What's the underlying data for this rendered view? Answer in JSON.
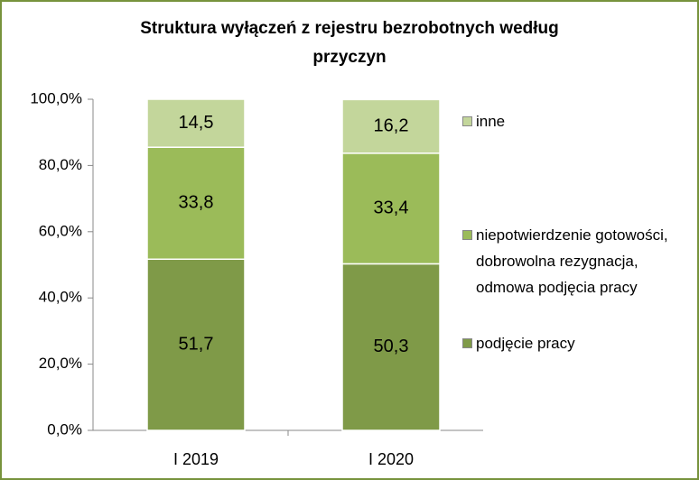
{
  "chart_data": {
    "type": "stacked_bar",
    "title": "Struktura wyłączeń z rejestru bezrobotnych według przyczyn",
    "categories": [
      "I 2019",
      "I 2020"
    ],
    "series": [
      {
        "name": "podjęcie pracy",
        "color": "#7f9a48",
        "values": [
          51.7,
          50.3
        ],
        "value_labels": [
          "51,7",
          "50,3"
        ]
      },
      {
        "name": "niepotwierdzenie gotowości, dobrowolna rezygnacja, odmowa podjęcia pracy",
        "color": "#9bbb59",
        "values": [
          33.8,
          33.4
        ],
        "value_labels": [
          "33,8",
          "33,4"
        ]
      },
      {
        "name": "inne",
        "color": "#c3d69b",
        "values": [
          14.5,
          16.2
        ],
        "value_labels": [
          "14,5",
          "16,2"
        ]
      }
    ],
    "ylim": [
      0,
      100
    ],
    "yticks": [
      {
        "value": 0,
        "label": "0,0%"
      },
      {
        "value": 20,
        "label": "20,0%"
      },
      {
        "value": 40,
        "label": "40,0%"
      },
      {
        "value": 60,
        "label": "60,0%"
      },
      {
        "value": 80,
        "label": "80,0%"
      },
      {
        "value": 100,
        "label": "100,0%"
      }
    ],
    "legend": "right"
  }
}
